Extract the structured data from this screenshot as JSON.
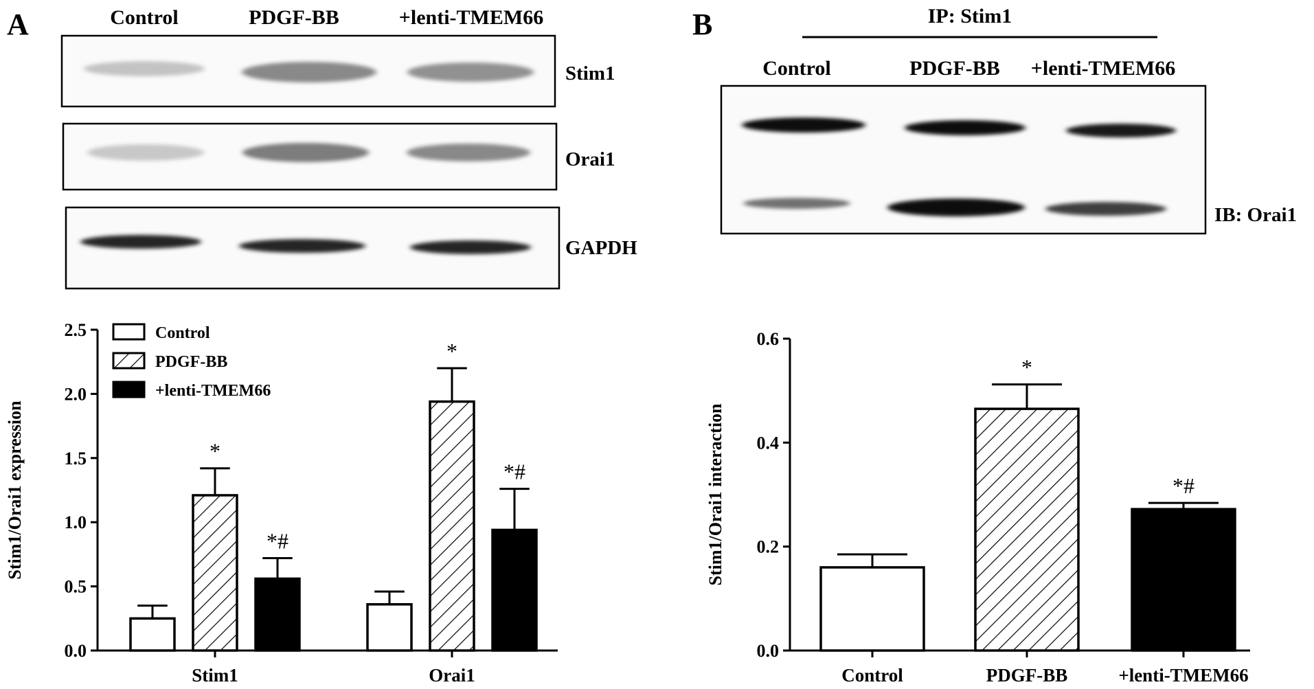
{
  "panel_a": {
    "letter": "A",
    "lanes": [
      "Control",
      "PDGF-BB",
      "+lenti-TMEM66"
    ],
    "blot_rows": [
      {
        "label": "Stim1",
        "intensities": [
          0.22,
          0.45,
          0.42
        ]
      },
      {
        "label": "Orai1",
        "intensities": [
          0.2,
          0.5,
          0.45
        ]
      },
      {
        "label": "GAPDH",
        "intensities": [
          0.85,
          0.85,
          0.85
        ]
      }
    ]
  },
  "panel_b": {
    "letter": "B",
    "ip_label": "IP: Stim1",
    "lanes": [
      "Control",
      "PDGF-BB",
      "+lenti-TMEM66"
    ],
    "ib_label": "IB: Orai1",
    "band_rows": [
      {
        "intensities": [
          0.95,
          0.95,
          0.9
        ]
      },
      {
        "intensities": [
          0.55,
          0.95,
          0.75
        ]
      }
    ]
  },
  "chart_data": [
    {
      "type": "bar",
      "title": "",
      "xlabel": "",
      "ylabel": "Stim1/Orai1 expression",
      "ylim": [
        0,
        2.5
      ],
      "yticks": [
        "0.0",
        "0.5",
        "1.0",
        "1.5",
        "2.0",
        "2.5"
      ],
      "categories": [
        "Stim1",
        "Orai1"
      ],
      "series": [
        {
          "name": "Control",
          "pattern": "open",
          "values": [
            0.25,
            0.36
          ],
          "errors": [
            0.1,
            0.1
          ],
          "annotations": [
            "",
            ""
          ]
        },
        {
          "name": "PDGF-BB",
          "pattern": "hatched",
          "values": [
            1.21,
            1.94
          ],
          "errors": [
            0.21,
            0.26
          ],
          "annotations": [
            "*",
            "*"
          ]
        },
        {
          "name": "+lenti-TMEM66",
          "pattern": "solid",
          "values": [
            0.56,
            0.94
          ],
          "errors": [
            0.16,
            0.32
          ],
          "annotations": [
            "*#",
            "*#"
          ]
        }
      ],
      "legend": "top-left",
      "grid": false
    },
    {
      "type": "bar",
      "title": "",
      "xlabel": "",
      "ylabel": "Stim1/Orai1 interaction",
      "ylim": [
        0,
        0.6
      ],
      "yticks": [
        "0.0",
        "0.2",
        "0.4",
        "0.6"
      ],
      "categories": [
        "Control",
        "PDGF-BB",
        "+lenti-TMEM66"
      ],
      "values": [
        0.16,
        0.465,
        0.272
      ],
      "errors": [
        0.025,
        0.047,
        0.012
      ],
      "patterns": [
        "open",
        "hatched",
        "solid"
      ],
      "annotations": [
        "",
        "*",
        "*#"
      ],
      "grid": false
    }
  ]
}
